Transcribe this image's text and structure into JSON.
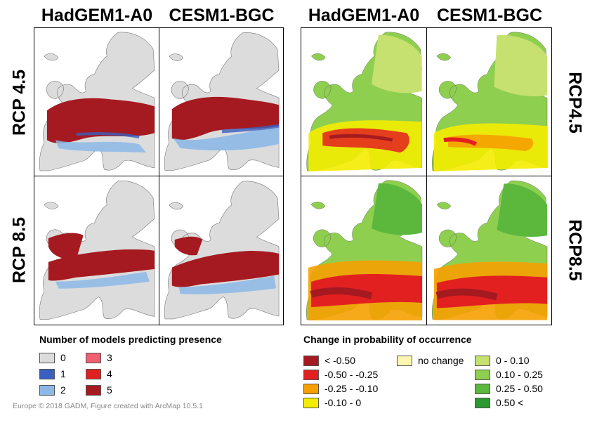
{
  "left_figure": {
    "columns": [
      "HadGEM1-A0",
      "CESM1-BGC"
    ],
    "rows": [
      "RCP 4.5",
      "RCP 8.5"
    ],
    "legend_title": "Number of models predicting presence",
    "legend_items": [
      {
        "label": "0",
        "color": "#dcdcdc"
      },
      {
        "label": "1",
        "color": "#3a5fc0"
      },
      {
        "label": "2",
        "color": "#8cb8e6"
      },
      {
        "label": "3",
        "color": "#f06070"
      },
      {
        "label": "4",
        "color": "#e02020"
      },
      {
        "label": "5",
        "color": "#a51a20"
      }
    ]
  },
  "right_figure": {
    "columns": [
      "HadGEM1-A0",
      "CESM1-BGC"
    ],
    "rows": [
      "RCP4.5",
      "RCP8.5"
    ],
    "legend_title": "Change in probability of occurrence",
    "legend_items": [
      {
        "label": "< -0.50",
        "color": "#a51a20"
      },
      {
        "label": "-0.50 - -0.25",
        "color": "#e32020"
      },
      {
        "label": "-0.25 - -0.10",
        "color": "#f5a000"
      },
      {
        "label": "-0.10 - 0",
        "color": "#f4ec00"
      },
      {
        "label": "no change",
        "color": "#fbf6b0"
      },
      {
        "label": "0 - 0.10",
        "color": "#c6e170"
      },
      {
        "label": "0.10 - 0.25",
        "color": "#8fcf50"
      },
      {
        "label": "0.25 - 0.50",
        "color": "#5cb83c"
      },
      {
        "label": "0.50 <",
        "color": "#2a9a30"
      }
    ]
  },
  "credit": "Europe © 2018 GADM, Figure created with ArcMap 10.5.1"
}
